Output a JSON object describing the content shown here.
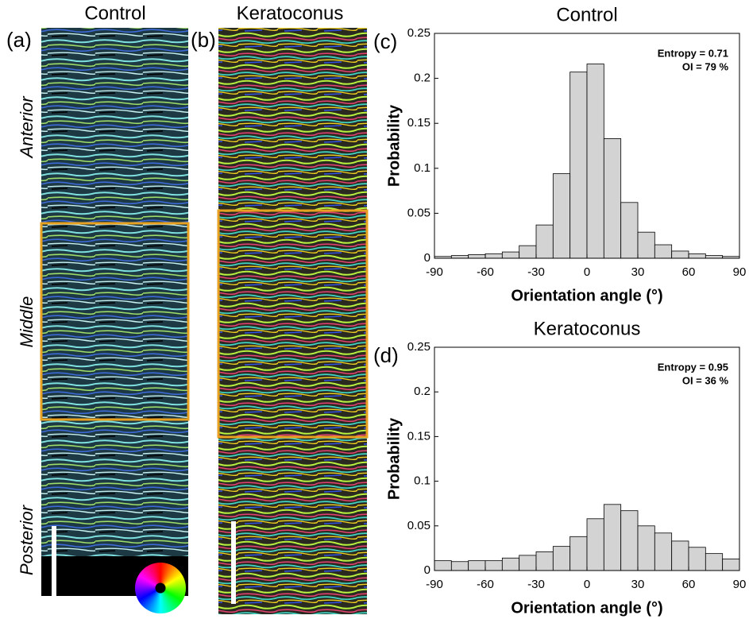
{
  "images": [
    {
      "label": "(a)",
      "title": "Control",
      "regions": [
        "Anterior",
        "Middle",
        "Posterior"
      ]
    },
    {
      "label": "(b)",
      "title": "Keratoconus"
    }
  ],
  "chart_data": [
    {
      "type": "histogram",
      "panel_label": "(c)",
      "title": "Control",
      "annotations": [
        "Entropy = 0.71",
        "OI = 79 %"
      ],
      "xlabel": "Orientation angle (°)",
      "ylabel": "Probability",
      "bins": [
        -90,
        -80,
        -70,
        -60,
        -50,
        -40,
        -30,
        -20,
        -10,
        0,
        10,
        20,
        30,
        40,
        50,
        60,
        70,
        80,
        90
      ],
      "values": [
        0.002,
        0.003,
        0.004,
        0.005,
        0.007,
        0.014,
        0.037,
        0.094,
        0.207,
        0.216,
        0.133,
        0.062,
        0.029,
        0.015,
        0.008,
        0.005,
        0.003,
        0.002
      ],
      "color": "#d3d3d3",
      "xlim": [
        -90,
        90
      ],
      "xticks": [
        -90,
        -60,
        -30,
        0,
        30,
        60,
        90
      ],
      "ylim": [
        0,
        0.25
      ],
      "yticks": [
        0,
        0.05,
        0.1,
        0.15,
        0.2,
        0.25
      ]
    },
    {
      "type": "histogram",
      "panel_label": "(d)",
      "title": "Keratoconus",
      "annotations": [
        "Entropy = 0.95",
        "OI = 36 %"
      ],
      "xlabel": "Orientation angle (°)",
      "ylabel": "Probability",
      "bins": [
        -90,
        -80,
        -70,
        -60,
        -50,
        -40,
        -30,
        -20,
        -10,
        0,
        10,
        20,
        30,
        40,
        50,
        60,
        70,
        80,
        90
      ],
      "values": [
        0.011,
        0.01,
        0.011,
        0.011,
        0.014,
        0.017,
        0.021,
        0.027,
        0.038,
        0.058,
        0.074,
        0.067,
        0.05,
        0.042,
        0.033,
        0.026,
        0.019,
        0.013
      ],
      "color": "#d3d3d3",
      "xlim": [
        -90,
        90
      ],
      "xticks": [
        -90,
        -60,
        -30,
        0,
        30,
        60,
        90
      ],
      "ylim": [
        0,
        0.25
      ],
      "yticks": [
        0,
        0.05,
        0.1,
        0.15,
        0.2,
        0.25
      ]
    }
  ]
}
